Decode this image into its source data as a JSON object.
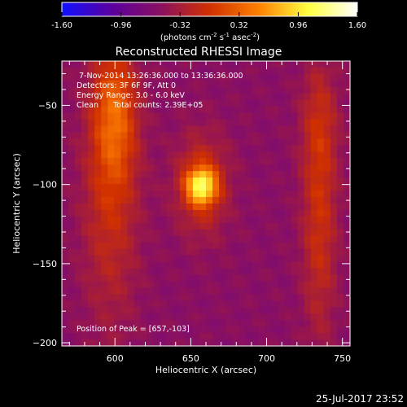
{
  "colorbar": {
    "ticks": [
      "-1.60",
      "-0.96",
      "-0.32",
      "0.32",
      "0.96",
      "1.60"
    ],
    "tick_values": [
      -1.6,
      -0.96,
      -0.32,
      0.32,
      0.96,
      1.6
    ],
    "range": [
      -1.6,
      1.6
    ],
    "units_main": "(photons cm",
    "units_sup1": "-2",
    "units_mid": " s",
    "units_sup2": "-1",
    "units_end": " asec",
    "units_sup3": "-2",
    "units_close": ")",
    "colors": [
      "#1010ff",
      "#5a00a0",
      "#8a1060",
      "#d03000",
      "#ff8000",
      "#ffff40",
      "#ffffff"
    ]
  },
  "chart_data": {
    "type": "heatmap",
    "title": "Reconstructed RHESSI Image",
    "xlabel": "Heliocentric X (arcsec)",
    "ylabel": "Heliocentric Y (arcsec)",
    "xlim": [
      565,
      755
    ],
    "ylim": [
      -202,
      -22
    ],
    "xticks": [
      600,
      650,
      700,
      750
    ],
    "yticks": [
      -50,
      -100,
      -150,
      -200
    ],
    "annotations": {
      "time": "7-Nov-2014 13:26:36.000 to 13:36:36.000",
      "detectors": "Detectors: 3F 6F 9F, Att 0",
      "energy": "Energy Range: 3.0 - 6.0 keV",
      "clean": "Clean      Total counts: 2.39E+05",
      "peak": "Position of Peak = [657,-103]"
    },
    "peak_position": [
      657,
      -103
    ],
    "sources": [
      {
        "x": 657,
        "y": -101,
        "sx": 7,
        "sy": 8,
        "amp": 1.3
      },
      {
        "x": 657,
        "y": -100,
        "sx": 12,
        "sy": 22,
        "amp": 0.55
      },
      {
        "x": 600,
        "y": -55,
        "sx": 10,
        "sy": 30,
        "amp": 0.7
      },
      {
        "x": 597,
        "y": -110,
        "sx": 13,
        "sy": 55,
        "amp": 0.45
      },
      {
        "x": 735,
        "y": -120,
        "sx": 8,
        "sy": 55,
        "amp": 0.5
      },
      {
        "x": 735,
        "y": -60,
        "sx": 9,
        "sy": 25,
        "amp": 0.25
      }
    ],
    "background_level": -0.55,
    "value_range": [
      -1.6,
      1.6
    ]
  },
  "footer": {
    "timestamp": "25-Jul-2017 23:52"
  }
}
